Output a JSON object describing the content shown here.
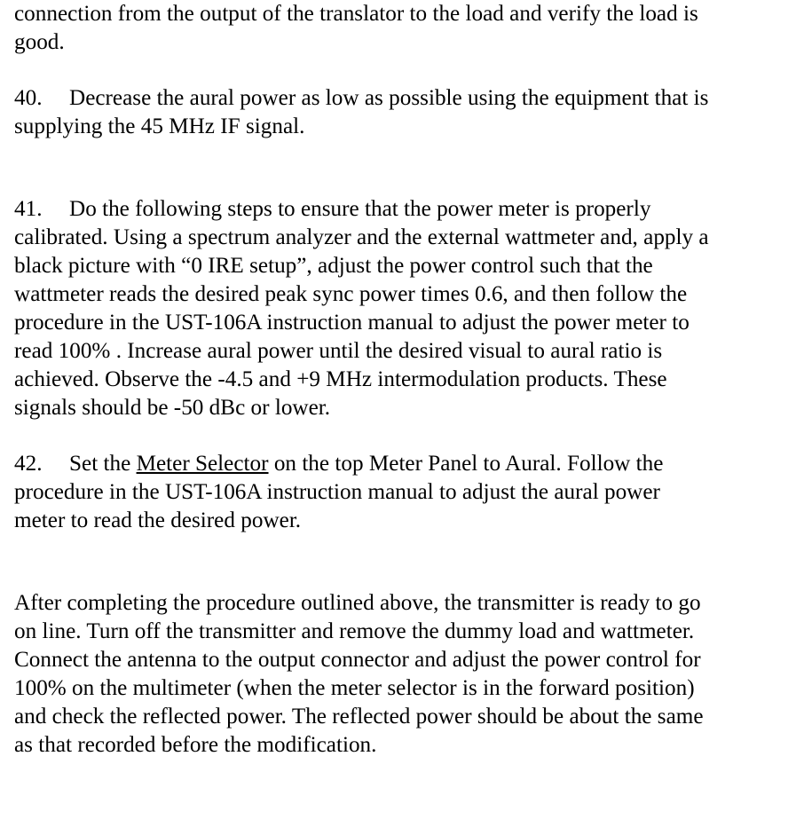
{
  "text_color": "#000000",
  "background_color": "#ffffff",
  "font_family": "Times New Roman",
  "font_size_pt": 19,
  "paragraphs": {
    "p_prev_tail_a": "connection from the output of the translator to the load and verify the load is",
    "p_prev_tail_b": "good.",
    "p40_num": "40.",
    "p40_a": "Decrease the aural power as low as possible using the equipment that is",
    "p40_b": "supplying the 45 MHz IF signal.",
    "p41_num": "41.",
    "p41_a": "Do the following steps to ensure that the power meter is properly",
    "p41_b": "calibrated. Using a spectrum analyzer and the external wattmeter and, apply a",
    "p41_c": "black picture with “0 IRE setup”, adjust the power control such that the",
    "p41_d": "wattmeter reads the desired peak sync power times 0.6, and then follow the",
    "p41_e": "procedure in the UST-106A instruction manual to adjust the power meter to",
    "p41_f": "read 100% . Increase aural power until  the desired visual to aural ratio is",
    "p41_g": "achieved. Observe the -4.5 and +9 MHz intermodulation products.  These",
    "p41_h": "signals should be -50 dBc or lower.",
    "p42_num": "42.",
    "p42_a_pre": "Set the ",
    "p42_a_u": "Meter Selector",
    "p42_a_post": " on the top Meter Panel to Aural. Follow the",
    "p42_b": "procedure in the UST-106A instruction manual to adjust the aural power",
    "p42_c": "meter to read the desired power.",
    "pfinal_a": "After completing the procedure outlined above, the transmitter is ready to go",
    "pfinal_b": "on line.  Turn off the transmitter and remove the dummy load and wattmeter.",
    "pfinal_c": "Connect the antenna to the output connector and adjust the power control for",
    "pfinal_d": "100% on the multimeter (when the meter selector is in the forward position)",
    "pfinal_e": "and check the reflected power.  The reflected power should be about the same",
    "pfinal_f": "as that recorded before the modification."
  }
}
